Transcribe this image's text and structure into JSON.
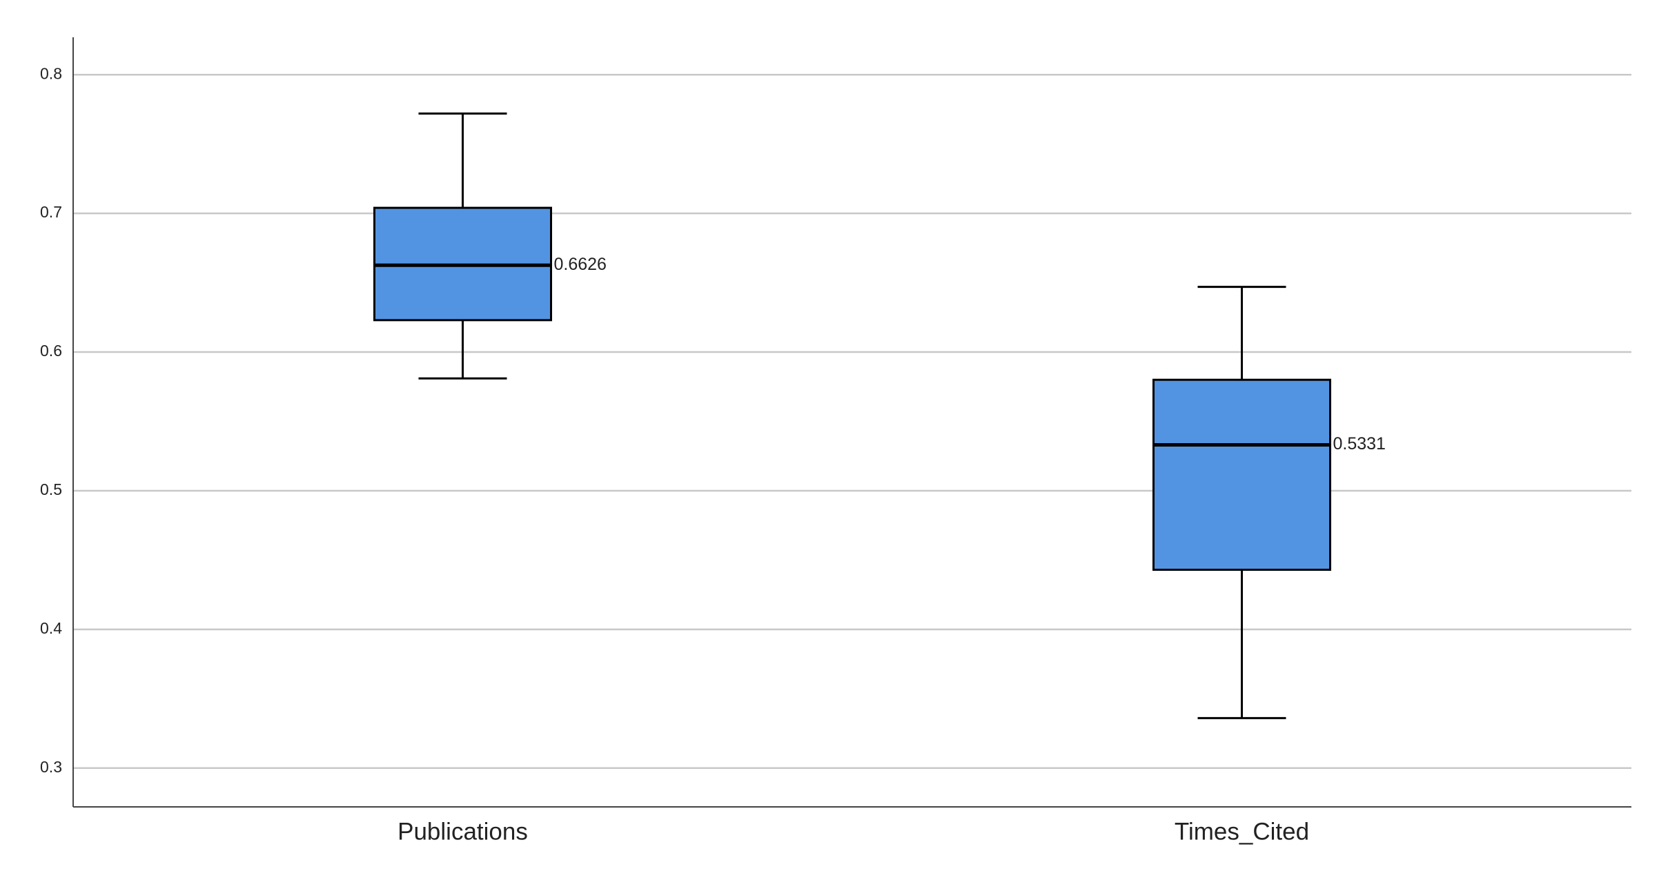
{
  "chart_data": {
    "type": "box",
    "categories": [
      "Publications",
      "Times_Cited"
    ],
    "boxes": [
      {
        "min": 0.581,
        "q1": 0.623,
        "median": 0.6626,
        "q3": 0.704,
        "max": 0.772
      },
      {
        "min": 0.336,
        "q1": 0.443,
        "median": 0.5331,
        "q3": 0.58,
        "max": 0.647
      }
    ],
    "color": "#5294e2",
    "ylim": [
      0.272,
      0.827
    ],
    "yticks": [
      0.3,
      0.4,
      0.5,
      0.6,
      0.7,
      0.8
    ],
    "grid": true
  }
}
